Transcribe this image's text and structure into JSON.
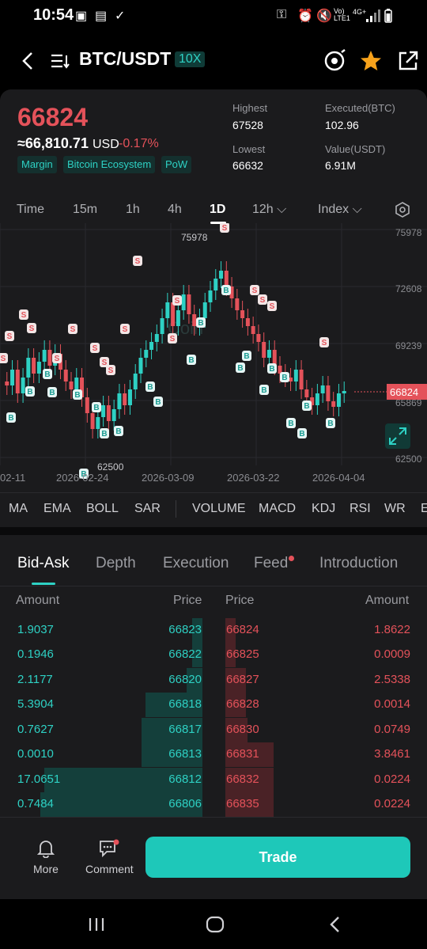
{
  "status": {
    "time": "10:54",
    "network": "Vo) LTE1",
    "net_type": "4G+"
  },
  "header": {
    "pair": "BTC/USDT",
    "leverage": "10X"
  },
  "ticker": {
    "price": "66824",
    "approx_value": "≈66,810.71",
    "approx_currency": "USD",
    "change": "-0.17%",
    "tags": [
      "Margin",
      "Bitcoin Ecosystem",
      "PoW"
    ],
    "highest_label": "Highest",
    "highest": "67528",
    "lowest_label": "Lowest",
    "lowest": "66632",
    "executed_label": "Executed(BTC)",
    "executed": "102.96",
    "value_label": "Value(USDT)",
    "value": "6.91M"
  },
  "timeframes": {
    "time": "Time",
    "m15": "15m",
    "h1": "1h",
    "h4": "4h",
    "d1": "1D",
    "h12": "12h",
    "index": "Index"
  },
  "chart_data": {
    "type": "candlestick",
    "y_ticks": [
      "75978",
      "72608",
      "69239",
      "65869",
      "62500"
    ],
    "x_ticks": [
      "02-11",
      "2026-02-24",
      "2026-03-09",
      "2026-03-22",
      "2026-04-04"
    ],
    "high_label": "75978",
    "low_label": "62500",
    "last_price": "66824",
    "ylim": [
      62500,
      75978
    ],
    "watermark": "Coin"
  },
  "indicators": [
    "MA",
    "EMA",
    "BOLL",
    "SAR",
    "VOLUME",
    "MACD",
    "KDJ",
    "RSI",
    "WR",
    "E"
  ],
  "tabs": {
    "bid_ask": "Bid-Ask",
    "depth": "Depth",
    "execution": "Execution",
    "feed": "Feed",
    "introduction": "Introduction"
  },
  "book_headers": {
    "amount_left": "Amount",
    "price_left": "Price",
    "price_right": "Price",
    "amount_right": "Amount"
  },
  "orderbook": [
    {
      "bid_amount": "1.9037",
      "bid_price": "66823",
      "ask_price": "66824",
      "ask_amount": "1.8622",
      "bid_depth": 0.05,
      "ask_depth": 0.05
    },
    {
      "bid_amount": "0.1946",
      "bid_price": "66822",
      "ask_price": "66825",
      "ask_amount": "0.0009",
      "bid_depth": 0.05,
      "ask_depth": 0.05
    },
    {
      "bid_amount": "2.1177",
      "bid_price": "66820",
      "ask_price": "66827",
      "ask_amount": "2.5338",
      "bid_depth": 0.08,
      "ask_depth": 0.1
    },
    {
      "bid_amount": "5.3904",
      "bid_price": "66818",
      "ask_price": "66828",
      "ask_amount": "0.0014",
      "bid_depth": 0.28,
      "ask_depth": 0.1
    },
    {
      "bid_amount": "0.7627",
      "bid_price": "66817",
      "ask_price": "66830",
      "ask_amount": "0.0749",
      "bid_depth": 0.3,
      "ask_depth": 0.11
    },
    {
      "bid_amount": "0.0010",
      "bid_price": "66813",
      "ask_price": "66831",
      "ask_amount": "3.8461",
      "bid_depth": 0.3,
      "ask_depth": 0.24
    },
    {
      "bid_amount": "17.0651",
      "bid_price": "66812",
      "ask_price": "66832",
      "ask_amount": "0.0224",
      "bid_depth": 0.78,
      "ask_depth": 0.24
    },
    {
      "bid_amount": "0.7484",
      "bid_price": "66806",
      "ask_price": "66835",
      "ask_amount": "0.0224",
      "bid_depth": 0.8,
      "ask_depth": 0.24
    }
  ],
  "bottom": {
    "more": "More",
    "comment": "Comment",
    "trade": "Trade"
  },
  "colors": {
    "up": "#2ed1c4",
    "down": "#e4525a",
    "accent": "#1ec8b9"
  }
}
